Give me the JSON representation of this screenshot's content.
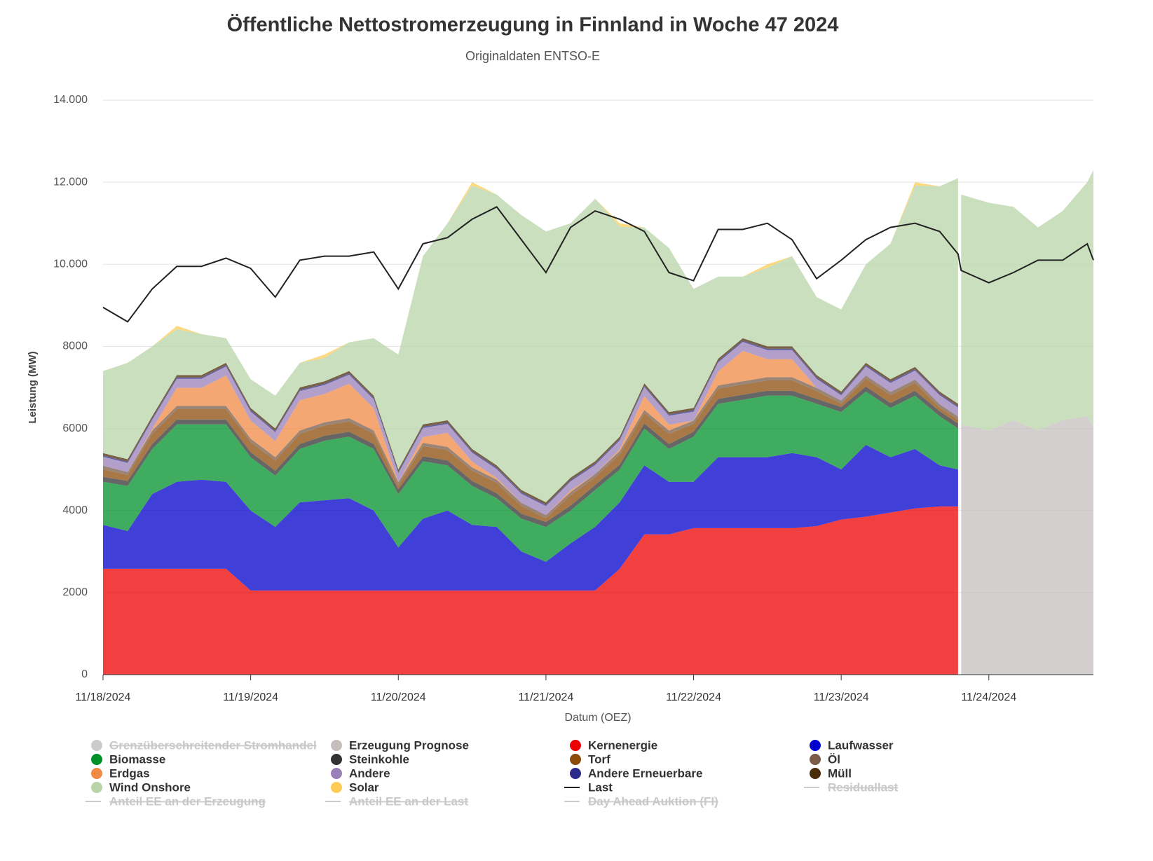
{
  "chart_data": {
    "type": "stacked_area",
    "title": "Öffentliche Nettostromerzeugung in Finnland in Woche 47 2024",
    "subtitle": "Originaldaten ENTSO-E",
    "ylabel": "Leistung (MW)",
    "xlabel": "Datum (OEZ)",
    "xlim": [
      "2024-11-18T00:00",
      "2024-11-24T17:00"
    ],
    "xticks": [
      {
        "value": "2024-11-18T00:00",
        "label": "11/18/2024"
      },
      {
        "value": "2024-11-19T00:00",
        "label": "11/19/2024"
      },
      {
        "value": "2024-11-20T00:00",
        "label": "11/20/2024"
      },
      {
        "value": "2024-11-21T00:00",
        "label": "11/21/2024"
      },
      {
        "value": "2024-11-22T00:00",
        "label": "11/22/2024"
      },
      {
        "value": "2024-11-23T00:00",
        "label": "11/23/2024"
      },
      {
        "value": "2024-11-24T00:00",
        "label": "11/24/2024"
      }
    ],
    "ylim": [
      0,
      14000
    ],
    "yticks": [
      0,
      2000,
      4000,
      6000,
      8000,
      {
        "value": 10000,
        "label": "10.000"
      },
      {
        "value": 12000,
        "label": "12.000"
      },
      {
        "value": 14000,
        "label": "14.000"
      }
    ],
    "grid": true,
    "legend": "bottom",
    "x": [
      "2024-11-18T00:00",
      "2024-11-18T04:00",
      "2024-11-18T08:00",
      "2024-11-18T12:00",
      "2024-11-18T16:00",
      "2024-11-18T20:00",
      "2024-11-19T00:00",
      "2024-11-19T04:00",
      "2024-11-19T08:00",
      "2024-11-19T12:00",
      "2024-11-19T16:00",
      "2024-11-19T20:00",
      "2024-11-20T00:00",
      "2024-11-20T04:00",
      "2024-11-20T08:00",
      "2024-11-20T12:00",
      "2024-11-20T16:00",
      "2024-11-20T20:00",
      "2024-11-21T00:00",
      "2024-11-21T04:00",
      "2024-11-21T08:00",
      "2024-11-21T12:00",
      "2024-11-21T16:00",
      "2024-11-21T20:00",
      "2024-11-22T00:00",
      "2024-11-22T04:00",
      "2024-11-22T08:00",
      "2024-11-22T12:00",
      "2024-11-22T16:00",
      "2024-11-22T20:00",
      "2024-11-23T00:00",
      "2024-11-23T04:00",
      "2024-11-23T08:00",
      "2024-11-23T12:00",
      "2024-11-23T16:00",
      "2024-11-23T19:00",
      "2024-11-23T19:30",
      "2024-11-24T00:00",
      "2024-11-24T04:00",
      "2024-11-24T08:00",
      "2024-11-24T12:00",
      "2024-11-24T16:00",
      "2024-11-24T17:00"
    ],
    "series": [
      {
        "name": "Grenzüberschreitender Stromhandel",
        "color": "#c8c8c8",
        "visible": false
      },
      {
        "name": "Erzeugung Prognose",
        "color": "#c4bfbd",
        "values": [
          null,
          null,
          null,
          null,
          null,
          null,
          null,
          null,
          null,
          null,
          null,
          null,
          null,
          null,
          null,
          null,
          null,
          null,
          null,
          null,
          null,
          null,
          null,
          null,
          null,
          null,
          null,
          null,
          null,
          null,
          null,
          null,
          null,
          null,
          null,
          null,
          6100,
          5950,
          6200,
          5950,
          6200,
          6300,
          6050
        ]
      },
      {
        "name": "Kernenergie",
        "color": "#ee0000",
        "values": [
          2580,
          2580,
          2580,
          2580,
          2580,
          2580,
          2050,
          2050,
          2050,
          2050,
          2050,
          2050,
          2050,
          2050,
          2050,
          2050,
          2050,
          2050,
          2050,
          2050,
          2050,
          2580,
          3420,
          3420,
          3570,
          3570,
          3570,
          3570,
          3570,
          3620,
          3780,
          3850,
          3950,
          4050,
          4100,
          4100,
          null,
          null,
          null,
          null,
          null,
          null,
          null
        ]
      },
      {
        "name": "Laufwasser",
        "color": "#0000cc",
        "values": [
          1070,
          920,
          1820,
          2120,
          2170,
          2120,
          1950,
          1550,
          2150,
          2200,
          2250,
          1950,
          1050,
          1750,
          1950,
          1600,
          1550,
          950,
          700,
          1150,
          1550,
          1620,
          1680,
          1280,
          1130,
          1730,
          1730,
          1730,
          1830,
          1680,
          1220,
          1750,
          1350,
          1450,
          1000,
          900,
          null,
          null,
          null,
          null,
          null,
          null,
          null
        ]
      },
      {
        "name": "Biomasse",
        "color": "#00902a",
        "values": [
          1050,
          1100,
          1100,
          1400,
          1350,
          1400,
          1300,
          1250,
          1300,
          1450,
          1500,
          1500,
          1300,
          1400,
          1100,
          950,
          700,
          800,
          850,
          800,
          900,
          800,
          900,
          800,
          1100,
          1300,
          1400,
          1500,
          1400,
          1300,
          1400,
          1300,
          1200,
          1300,
          1200,
          1000,
          null,
          null,
          null,
          null,
          null,
          null,
          null
        ]
      },
      {
        "name": "Steinkohle",
        "color": "#333333",
        "values": [
          120,
          120,
          120,
          120,
          120,
          120,
          120,
          120,
          120,
          120,
          120,
          120,
          120,
          120,
          120,
          120,
          120,
          120,
          120,
          120,
          120,
          120,
          120,
          120,
          120,
          120,
          120,
          120,
          120,
          120,
          120,
          120,
          120,
          120,
          120,
          120,
          null,
          null,
          null,
          null,
          null,
          null,
          null
        ]
      },
      {
        "name": "Torf",
        "color": "#8b4c0a",
        "values": [
          190,
          140,
          250,
          250,
          250,
          250,
          250,
          250,
          250,
          250,
          250,
          250,
          90,
          250,
          250,
          250,
          250,
          190,
          90,
          250,
          190,
          250,
          250,
          250,
          190,
          250,
          250,
          250,
          250,
          190,
          80,
          190,
          190,
          190,
          90,
          90,
          null,
          null,
          null,
          null,
          null,
          null,
          null
        ]
      },
      {
        "name": "Öl",
        "color": "#7a5c48",
        "values": [
          80,
          80,
          80,
          80,
          80,
          80,
          80,
          80,
          80,
          80,
          80,
          80,
          80,
          80,
          80,
          80,
          80,
          80,
          80,
          80,
          80,
          80,
          80,
          80,
          80,
          80,
          80,
          80,
          80,
          80,
          80,
          80,
          80,
          80,
          80,
          80,
          null,
          null,
          null,
          null,
          null,
          null,
          null
        ]
      },
      {
        "name": "Erdgas",
        "color": "#f08a44",
        "values": [
          0,
          0,
          40,
          440,
          440,
          740,
          440,
          390,
          740,
          690,
          840,
          540,
          0,
          140,
          340,
          140,
          40,
          0,
          0,
          40,
          0,
          40,
          340,
          140,
          0,
          340,
          740,
          440,
          440,
          0,
          0,
          0,
          0,
          0,
          0,
          0,
          null,
          null,
          null,
          null,
          null,
          null,
          null
        ]
      },
      {
        "name": "Andere",
        "color": "#9a80b8",
        "values": [
          220,
          220,
          220,
          220,
          220,
          220,
          220,
          220,
          220,
          220,
          220,
          220,
          220,
          220,
          220,
          220,
          220,
          220,
          220,
          220,
          220,
          220,
          220,
          220,
          220,
          220,
          220,
          220,
          220,
          220,
          130,
          220,
          220,
          220,
          220,
          220,
          null,
          null,
          null,
          null,
          null,
          null,
          null
        ]
      },
      {
        "name": "Andere Erneuerbare",
        "color": "#2b2b8a",
        "values": [
          30,
          30,
          30,
          30,
          30,
          30,
          30,
          30,
          30,
          30,
          30,
          30,
          30,
          30,
          30,
          30,
          30,
          30,
          30,
          30,
          30,
          30,
          30,
          30,
          30,
          30,
          30,
          30,
          30,
          30,
          30,
          30,
          30,
          30,
          30,
          30,
          null,
          null,
          null,
          null,
          null,
          null,
          null
        ]
      },
      {
        "name": "Müll",
        "color": "#4a2c0a",
        "values": [
          60,
          60,
          60,
          60,
          60,
          60,
          60,
          60,
          60,
          60,
          60,
          60,
          60,
          60,
          60,
          60,
          60,
          60,
          60,
          60,
          60,
          60,
          60,
          60,
          60,
          60,
          60,
          60,
          60,
          60,
          60,
          60,
          60,
          60,
          60,
          60,
          null,
          null,
          null,
          null,
          null,
          null,
          null
        ]
      },
      {
        "name": "Wind Onshore",
        "color": "#b8d4a8",
        "values": [
          2000,
          2350,
          1700,
          1120,
          1000,
          600,
          700,
          800,
          600,
          570,
          700,
          1400,
          2800,
          4100,
          4800,
          6420,
          6600,
          6700,
          6600,
          6200,
          6400,
          5120,
          3800,
          4000,
          2900,
          2000,
          1500,
          1920,
          2200,
          1900,
          2000,
          2400,
          3300,
          4420,
          5000,
          5500,
          5600,
          5550,
          5200,
          4950,
          5100,
          5700,
          6250
        ]
      },
      {
        "name": "Solar",
        "color": "#ffcc55",
        "values": [
          0,
          0,
          0,
          80,
          0,
          0,
          0,
          0,
          0,
          80,
          0,
          0,
          0,
          0,
          0,
          80,
          0,
          0,
          0,
          0,
          0,
          80,
          0,
          0,
          0,
          0,
          0,
          80,
          0,
          0,
          0,
          0,
          0,
          80,
          0,
          0,
          null,
          null,
          null,
          null,
          null,
          null,
          null
        ]
      },
      {
        "name": "Last",
        "color": "#222222",
        "kind": "line",
        "values": [
          8950,
          8600,
          9400,
          9950,
          9950,
          10150,
          9900,
          9200,
          10100,
          10200,
          10200,
          10300,
          9400,
          10500,
          10650,
          11100,
          11400,
          10600,
          9800,
          10900,
          11300,
          11100,
          10800,
          9800,
          9600,
          10850,
          10850,
          11000,
          10600,
          9650,
          10100,
          10600,
          10900,
          11000,
          10800,
          10250,
          9850,
          9550,
          9800,
          10100,
          10100,
          10500,
          10100
        ]
      },
      {
        "name": "Residuallast",
        "color": "#c8c8c8",
        "kind": "line",
        "visible": false
      },
      {
        "name": "Anteil EE an der Erzeugung",
        "color": "#c8c8c8",
        "kind": "line",
        "visible": false
      },
      {
        "name": "Anteil EE an der Last",
        "color": "#c8c8c8",
        "kind": "line",
        "visible": false
      },
      {
        "name": "Day Ahead Auktion (FI)",
        "color": "#c8c8c8",
        "kind": "line",
        "visible": false
      }
    ]
  }
}
